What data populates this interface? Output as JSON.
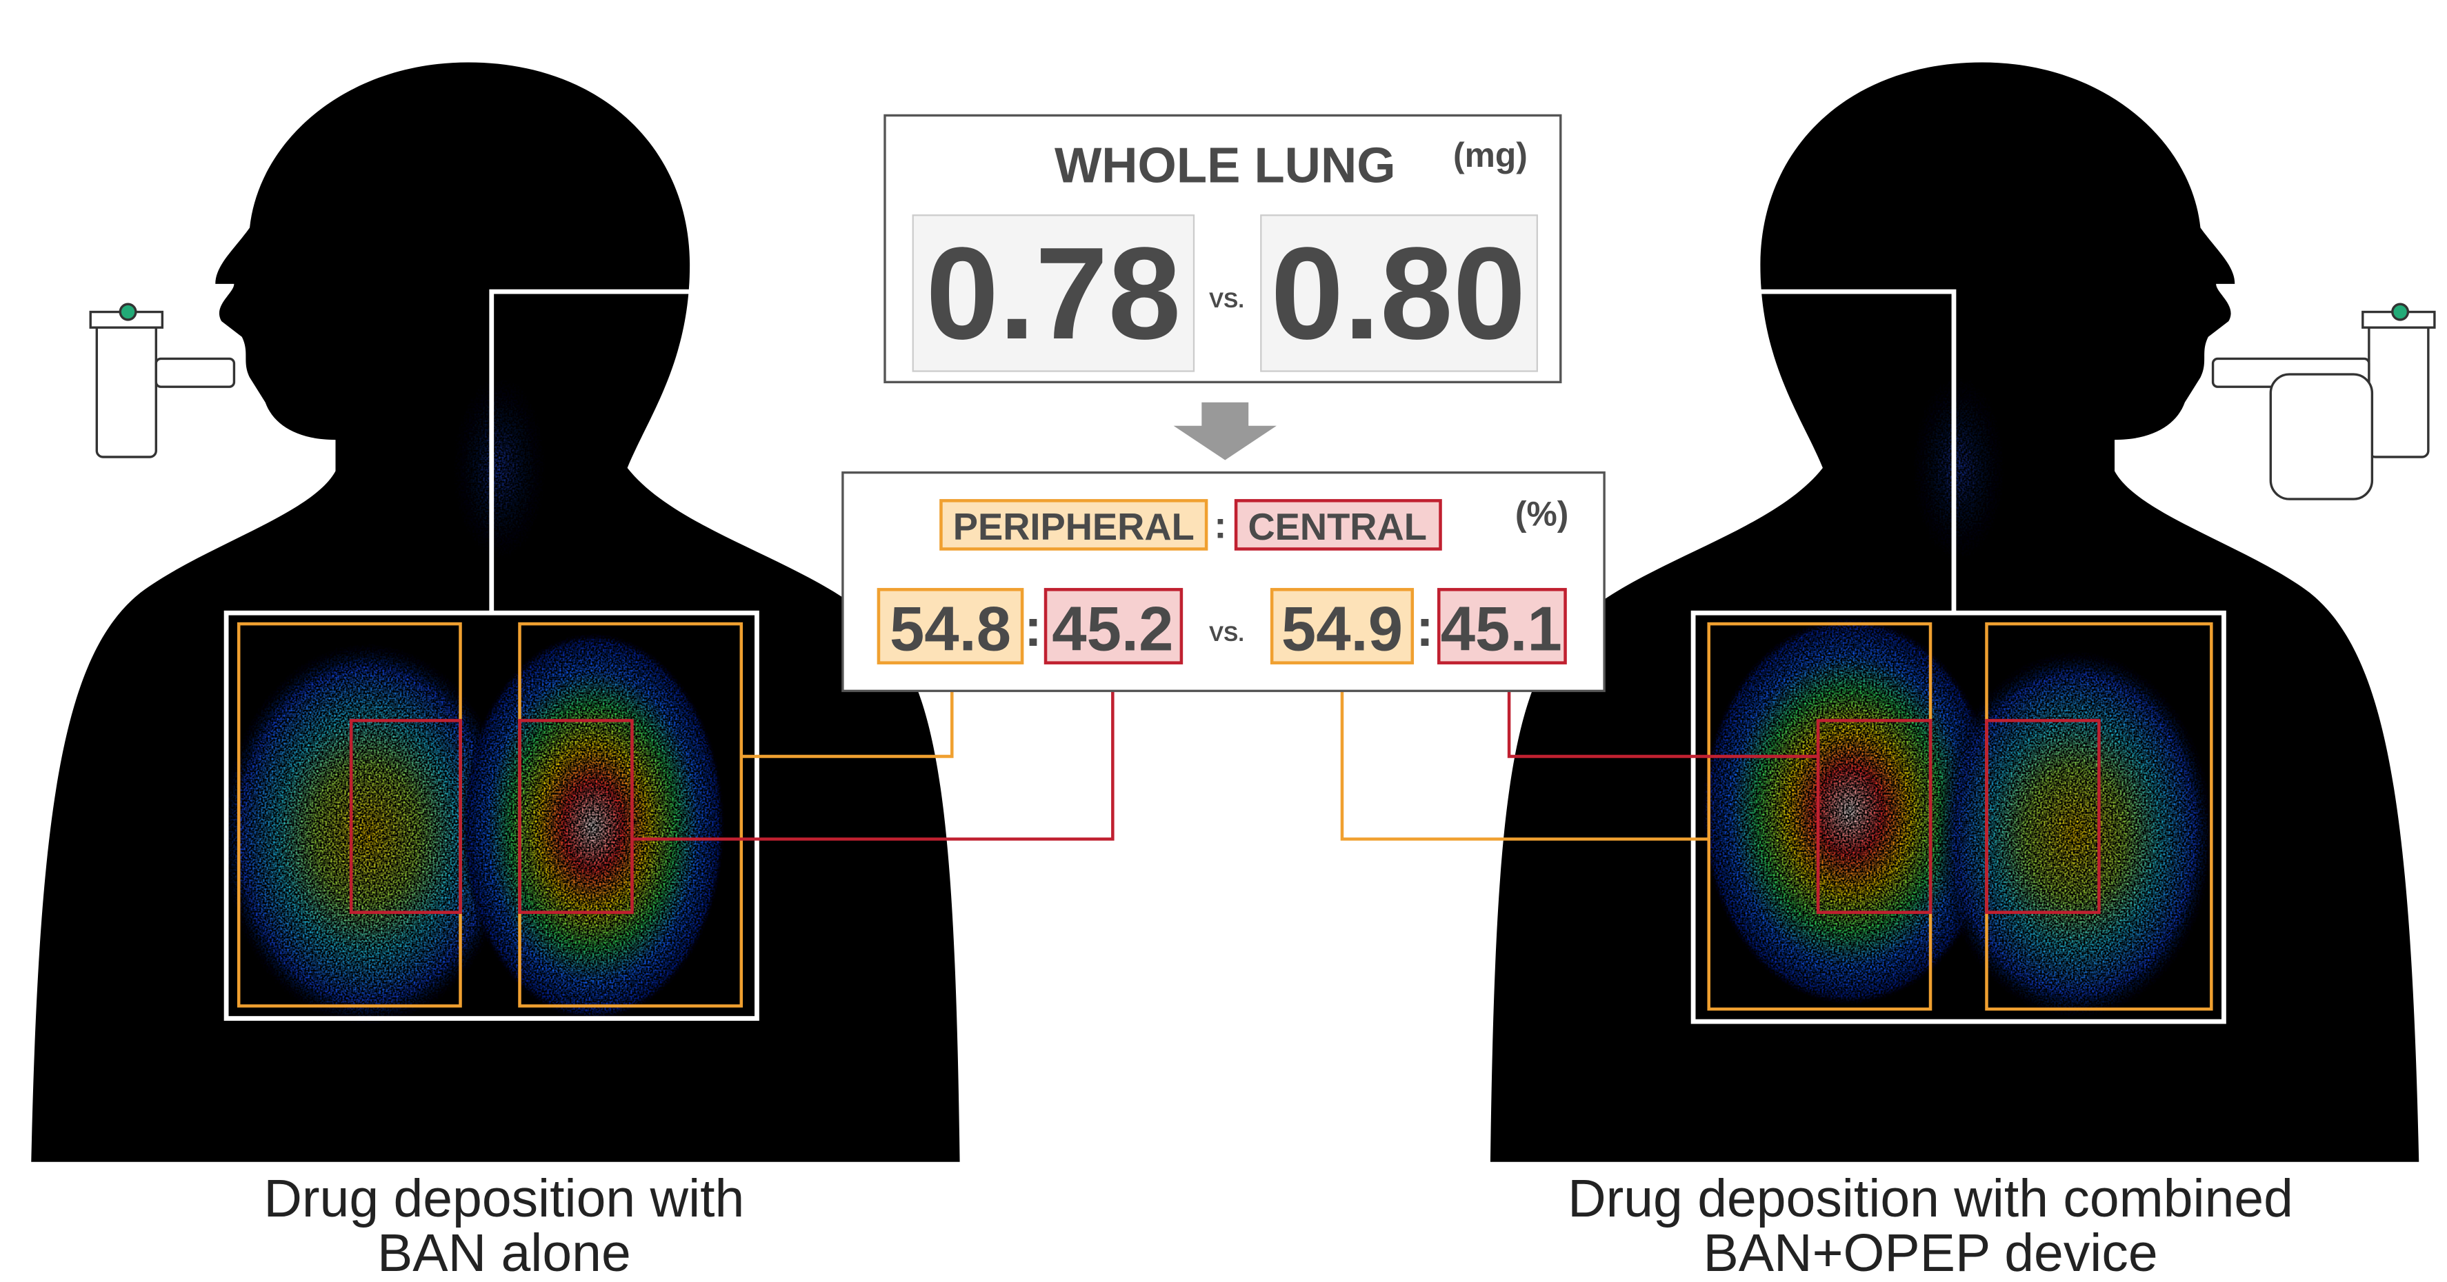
{
  "whole_lung": {
    "title": "WHOLE LUNG",
    "unit": "(mg)",
    "left": "0.78",
    "vs": "VS.",
    "right": "0.80"
  },
  "ratio": {
    "peripheral": "PERIPHERAL",
    "separator": ":",
    "central": "CENTRAL",
    "unit": "(%)",
    "vs": "VS.",
    "left": {
      "peripheral": "54.8",
      "central": "45.2"
    },
    "right": {
      "peripheral": "54.9",
      "central": "45.1"
    }
  },
  "captions": {
    "left": [
      "Drug deposition with",
      "BAN alone"
    ],
    "right": [
      "Drug deposition with combined",
      "BAN+OPEP device"
    ]
  }
}
